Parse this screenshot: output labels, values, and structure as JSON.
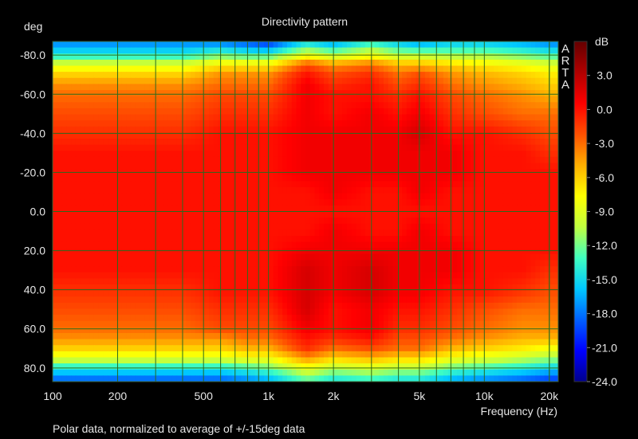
{
  "chart_data": {
    "type": "heatmap",
    "title": "Directivity pattern",
    "ylabel": "deg",
    "xlabel": "Frequency (Hz)",
    "footnote": "Polar data, normalized to average of +/-15deg data",
    "watermark": "ARTA",
    "x_scale": "log",
    "xlim": [
      100,
      22000
    ],
    "ylim": [
      -87,
      87
    ],
    "x_ticks": [
      {
        "value": 100,
        "label": "100"
      },
      {
        "value": 200,
        "label": "200"
      },
      {
        "value": 500,
        "label": "500"
      },
      {
        "value": 1000,
        "label": "1k"
      },
      {
        "value": 2000,
        "label": "2k"
      },
      {
        "value": 5000,
        "label": "5k"
      },
      {
        "value": 10000,
        "label": "10k"
      },
      {
        "value": 20000,
        "label": "20k"
      }
    ],
    "y_ticks": [
      {
        "value": -80,
        "label": "-80.0"
      },
      {
        "value": -60,
        "label": "-60.0"
      },
      {
        "value": -40,
        "label": "-40.0"
      },
      {
        "value": -20,
        "label": "-20.0"
      },
      {
        "value": 0,
        "label": "0.0"
      },
      {
        "value": 20,
        "label": "20.0"
      },
      {
        "value": 40,
        "label": "40.0"
      },
      {
        "value": 60,
        "label": "60.0"
      },
      {
        "value": 80,
        "label": "80.0"
      }
    ],
    "colorbar": {
      "label": "dB",
      "range": [
        -24,
        6
      ],
      "ticks": [
        {
          "value": 3,
          "label": "3.0"
        },
        {
          "value": 0,
          "label": "0.0"
        },
        {
          "value": -3,
          "label": "-3.0"
        },
        {
          "value": -6,
          "label": "-6.0"
        },
        {
          "value": -9,
          "label": "-9.0"
        },
        {
          "value": -12,
          "label": "-12.0"
        },
        {
          "value": -15,
          "label": "-15.0"
        },
        {
          "value": -18,
          "label": "-18.0"
        },
        {
          "value": -21,
          "label": "-21.0"
        },
        {
          "value": -24,
          "label": "-24.0"
        }
      ],
      "colors": [
        "#00008c",
        "#0000ff",
        "#0060ff",
        "#00c8ff",
        "#40ffc0",
        "#c0ff40",
        "#ffff00",
        "#ffb000",
        "#ff5000",
        "#ff0000",
        "#b00000",
        "#640000"
      ]
    },
    "grid": true,
    "grid_color": "#2a6a1e",
    "rows_deg": [
      -85,
      -80,
      -75,
      -70,
      -65,
      -60,
      -50,
      -40,
      -30,
      -20,
      -10,
      0,
      10,
      20,
      30,
      40,
      50,
      60,
      65,
      70,
      75,
      80,
      85
    ],
    "cols_hz": [
      100,
      200,
      400,
      600,
      800,
      1000,
      1500,
      2000,
      3000,
      4000,
      5000,
      7000,
      10000,
      15000,
      20000,
      22000
    ],
    "values_db": [
      [
        -17,
        -17,
        -17,
        -17,
        -18,
        -19,
        -14,
        -16,
        -13,
        -15,
        -16,
        -15,
        -15,
        -16,
        -17,
        -17
      ],
      [
        -14,
        -14,
        -14,
        -12,
        -13,
        -13,
        -8,
        -10,
        -8,
        -10,
        -10,
        -11,
        -11,
        -12,
        -13,
        -13
      ],
      [
        -9,
        -9,
        -9,
        -7,
        -7,
        -7,
        -2,
        -4,
        -3,
        -5,
        -5,
        -6,
        -7,
        -8,
        -9,
        -9
      ],
      [
        -6,
        -6,
        -6,
        -4,
        -4,
        -4,
        0,
        -2,
        -1,
        -3,
        -2,
        -4,
        -5,
        -6,
        -7,
        -7
      ],
      [
        -4,
        -4,
        -4,
        -3,
        -3,
        -3,
        1,
        -1,
        0,
        -2,
        -1,
        -3,
        -4,
        -5,
        -6,
        -6
      ],
      [
        -3,
        -3,
        -3,
        -2,
        -2,
        -2,
        1,
        0,
        0,
        -1,
        0,
        -2,
        -3,
        -4,
        -5,
        -5
      ],
      [
        -2,
        -2,
        -2,
        -1,
        -1,
        -1,
        1,
        0,
        1,
        0,
        1,
        -1,
        -2,
        -3,
        -3,
        -3
      ],
      [
        -1,
        -1,
        -1,
        0,
        0,
        0,
        1,
        1,
        1,
        1,
        2,
        0,
        0,
        -1,
        -2,
        -2
      ],
      [
        0,
        0,
        0,
        0,
        0,
        0,
        1,
        1,
        1,
        1,
        1,
        1,
        0,
        0,
        -1,
        -1
      ],
      [
        0,
        0,
        0,
        0,
        0,
        0,
        1,
        1,
        1,
        1,
        1,
        1,
        0,
        0,
        0,
        0
      ],
      [
        0,
        0,
        0,
        0,
        0,
        0,
        0,
        1,
        0,
        0,
        1,
        0,
        0,
        0,
        0,
        0
      ],
      [
        0,
        0,
        0,
        0,
        0,
        0,
        0,
        0,
        0,
        0,
        0,
        0,
        0,
        0,
        0,
        0
      ],
      [
        0,
        0,
        0,
        0,
        0,
        0,
        0,
        1,
        0,
        0,
        1,
        0,
        0,
        0,
        0,
        0
      ],
      [
        0,
        0,
        0,
        0,
        0,
        0,
        1,
        1,
        1,
        1,
        1,
        1,
        0,
        0,
        0,
        0
      ],
      [
        0,
        0,
        0,
        0,
        0,
        0,
        2,
        1,
        2,
        1,
        1,
        1,
        0,
        0,
        -1,
        -1
      ],
      [
        -1,
        -1,
        -1,
        0,
        0,
        0,
        2,
        1,
        2,
        1,
        1,
        0,
        0,
        -1,
        -2,
        -2
      ],
      [
        -2,
        -2,
        -2,
        -1,
        -1,
        -1,
        2,
        0,
        1,
        0,
        0,
        -1,
        -2,
        -3,
        -3,
        -3
      ],
      [
        -3,
        -3,
        -3,
        -2,
        -2,
        -2,
        1,
        0,
        1,
        -1,
        -1,
        -2,
        -3,
        -4,
        -4,
        -4
      ],
      [
        -4,
        -4,
        -4,
        -4,
        -3,
        -3,
        0,
        -1,
        0,
        -2,
        -2,
        -3,
        -4,
        -5,
        -5,
        -5
      ],
      [
        -6,
        -6,
        -6,
        -6,
        -5,
        -5,
        -1,
        -3,
        -2,
        -3,
        -3,
        -5,
        -6,
        -7,
        -8,
        -8
      ],
      [
        -9,
        -9,
        -9,
        -9,
        -8,
        -8,
        -4,
        -6,
        -5,
        -6,
        -6,
        -8,
        -9,
        -10,
        -11,
        -11
      ],
      [
        -14,
        -14,
        -14,
        -14,
        -13,
        -12,
        -8,
        -10,
        -9,
        -10,
        -10,
        -12,
        -13,
        -14,
        -15,
        -15
      ],
      [
        -18,
        -18,
        -18,
        -18,
        -17,
        -16,
        -12,
        -14,
        -13,
        -14,
        -14,
        -16,
        -17,
        -18,
        -19,
        -19
      ]
    ]
  }
}
